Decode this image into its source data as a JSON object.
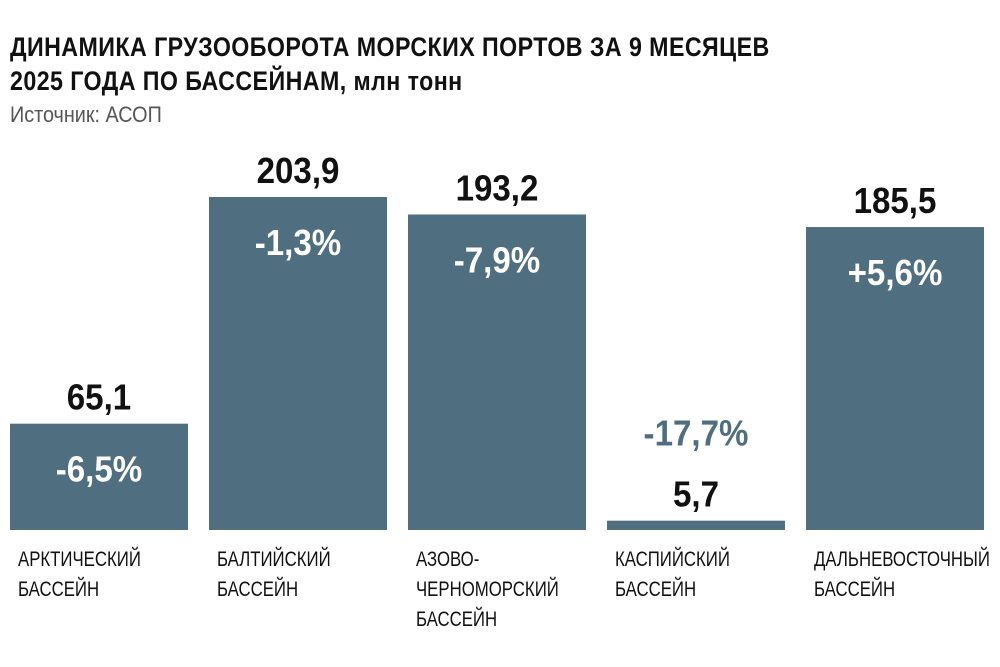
{
  "chart_data": {
    "type": "bar",
    "title": "ДИНАМИКА ГРУЗООБОРОТА МОРСКИХ ПОРТОВ ЗА 9 МЕСЯЦЕВ 2025 ГОДА ПО БАССЕЙНАМ, млн тонн",
    "title_lines": [
      "ДИНАМИКА ГРУЗООБОРОТА МОРСКИХ ПОРТОВ ЗА 9 МЕСЯЦЕВ",
      "2025 ГОДА ПО БАССЕЙНАМ, млн тонн"
    ],
    "source": "Источник: АСОП",
    "unit": "млн тонн",
    "categories": [
      [
        "АРКТИЧЕСКИЙ",
        "БАССЕЙН"
      ],
      [
        "БАЛТИЙСКИЙ",
        "БАССЕЙН"
      ],
      [
        "АЗОВО-",
        "ЧЕРНОМОРСКИЙ",
        "БАССЕЙН"
      ],
      [
        "КАСПИЙСКИЙ",
        "БАССЕЙН"
      ],
      [
        "ДАЛЬНЕВОСТОЧНЫЙ",
        "БАССЕЙН"
      ]
    ],
    "values": [
      65.1,
      203.9,
      193.2,
      5.7,
      185.5
    ],
    "value_labels": [
      "65,1",
      "203,9",
      "193,2",
      "5,7",
      "185,5"
    ],
    "change_labels": [
      "-6,5%",
      "-1,3%",
      "-7,9%",
      "-17,7%",
      "+5,6%"
    ],
    "ylim": [
      0,
      203.9
    ],
    "grid": false,
    "bar_color": "#4f6f80"
  }
}
